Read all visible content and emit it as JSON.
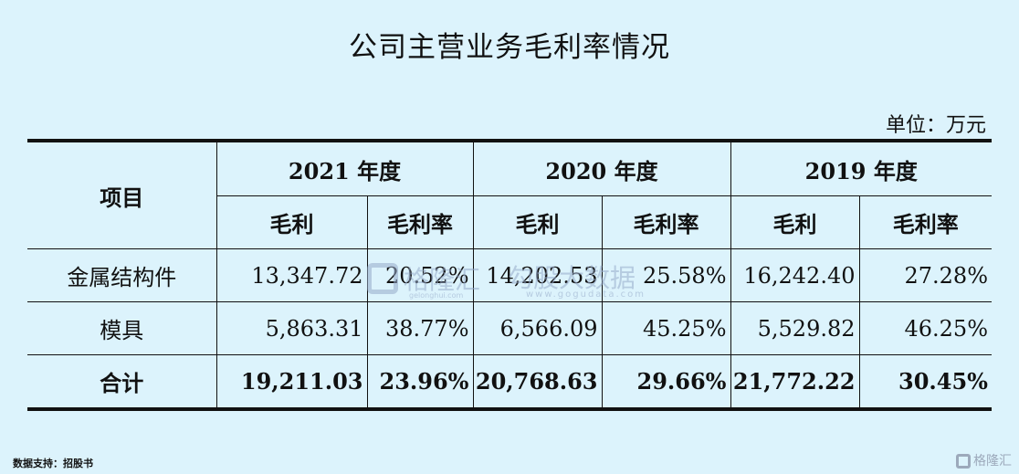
{
  "title": "公司主营业务毛利率情况",
  "unit": "单位：万元",
  "table": {
    "item_header": "项目",
    "years": [
      "2021 年度",
      "2020 年度",
      "2019 年度"
    ],
    "sub_headers": {
      "profit": "毛利",
      "margin": "毛利率"
    },
    "rows": [
      {
        "label": "金属结构件",
        "values": [
          "13,347.72",
          "20.52%",
          "14,202.53",
          "25.58%",
          "16,242.40",
          "27.28%"
        ]
      },
      {
        "label": "模具",
        "values": [
          "5,863.31",
          "38.77%",
          "6,566.09",
          "45.25%",
          "5,529.82",
          "46.25%"
        ]
      },
      {
        "label": "合计",
        "values": [
          "19,211.03",
          "23.96%",
          "20,768.63",
          "29.66%",
          "21,772.22",
          "30.45%"
        ]
      }
    ]
  },
  "source": "数据支持：招股书",
  "watermarks": {
    "center_left": "格隆汇",
    "center_left_url": "gelonghui.com",
    "center_right": "勾股大数据",
    "center_right_url": "www.gogudata.com",
    "corner": "格隆汇"
  }
}
